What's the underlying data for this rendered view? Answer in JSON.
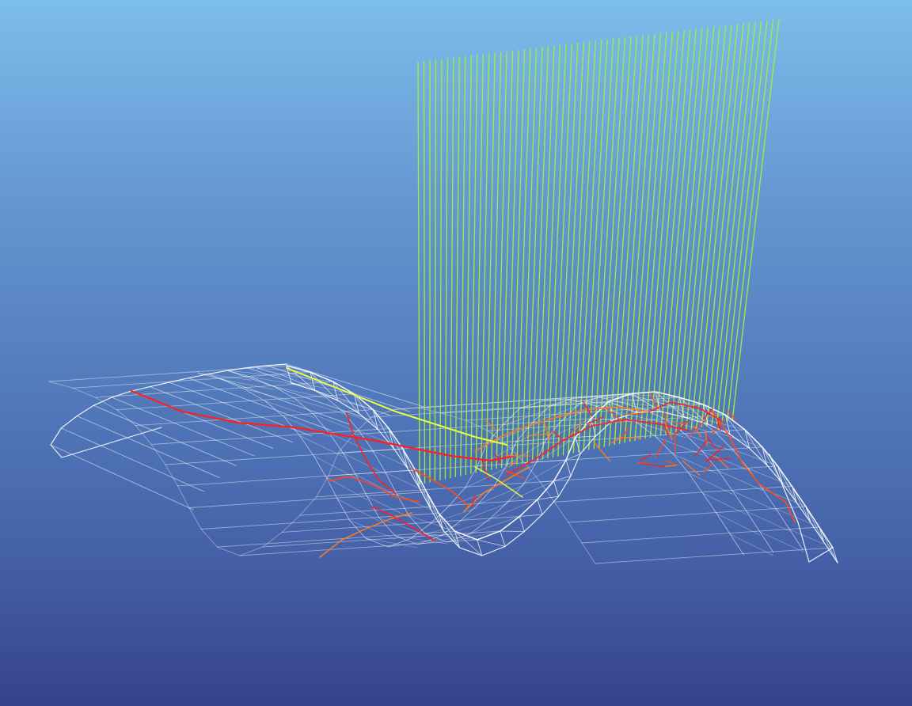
{
  "viewport": {
    "background_top": "#7dbdea",
    "background_bottom": "#36428b"
  },
  "scene": {
    "surface": {
      "mesh": "triangulated-wave-wireframe",
      "color": "#ffffff",
      "style": "wireframe"
    },
    "ray_curtain": {
      "color": "#9cf03c",
      "style": "vertical-lines"
    },
    "flow_paths": {
      "colors": [
        "#ff1f1f",
        "#ff4a1a",
        "#ff7a22"
      ],
      "style": "polylines"
    },
    "trajectory": {
      "color": "#e8ff3c",
      "style": "curve"
    }
  }
}
